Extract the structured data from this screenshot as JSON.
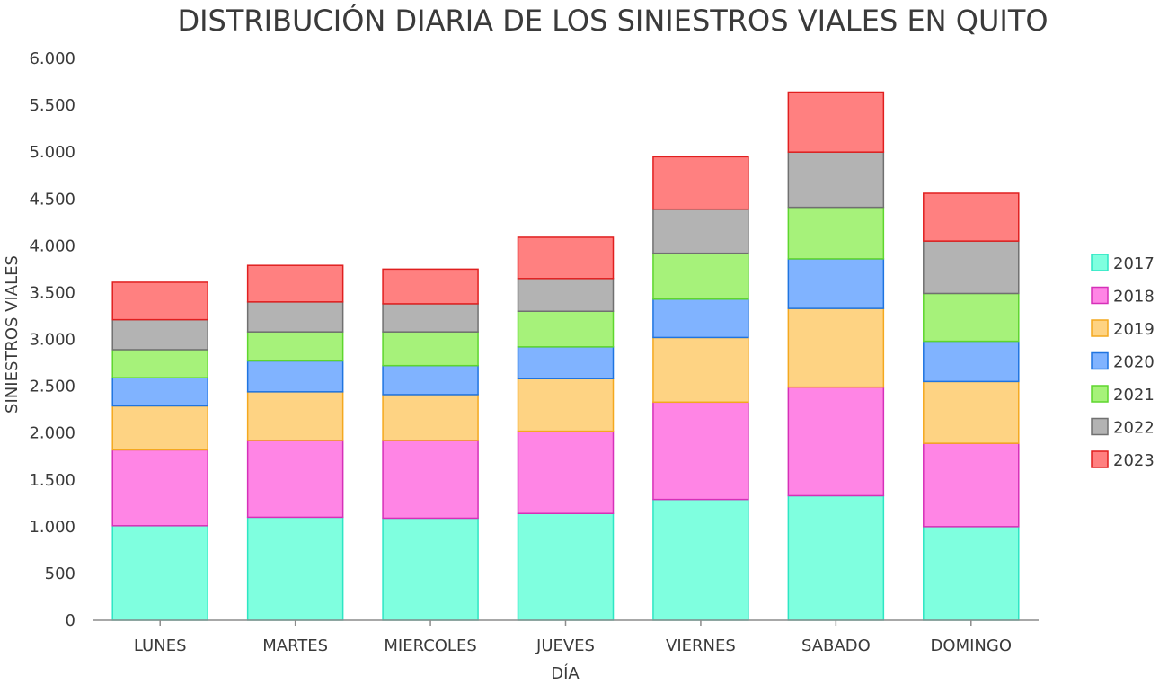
{
  "chart_data": {
    "type": "bar",
    "stacked": true,
    "title": "DISTRIBUCIÓN DIARIA DE LOS SINIESTROS VIALES EN QUITO",
    "xlabel": "DÍA",
    "ylabel": "SINIESTROS VIALES",
    "ylim": [
      0,
      6000
    ],
    "yticks": [
      0,
      500,
      1000,
      1500,
      2000,
      2500,
      3000,
      3500,
      4000,
      4500,
      5000,
      5500,
      6000
    ],
    "ytick_labels": [
      "0",
      "500",
      "1.000",
      "1.500",
      "2.000",
      "2.500",
      "3.000",
      "3.500",
      "4.000",
      "4.500",
      "5.000",
      "5.500",
      "6.000"
    ],
    "categories": [
      "LUNES",
      "MARTES",
      "MIERCOLES",
      "JUEVES",
      "VIERNES",
      "SABADO",
      "DOMINGO"
    ],
    "legend_position": "right",
    "grid": false,
    "series": [
      {
        "name": "2017",
        "values": [
          1010,
          1100,
          1090,
          1140,
          1290,
          1330,
          1000
        ],
        "fill": "#7fffdf",
        "stroke": "#2ee6c4"
      },
      {
        "name": "2018",
        "values": [
          810,
          820,
          830,
          880,
          1040,
          1160,
          890
        ],
        "fill": "#ff85e5",
        "stroke": "#d630b8"
      },
      {
        "name": "2019",
        "values": [
          470,
          520,
          490,
          560,
          690,
          840,
          660
        ],
        "fill": "#fed383",
        "stroke": "#f4a81f"
      },
      {
        "name": "2020",
        "values": [
          300,
          330,
          310,
          340,
          410,
          530,
          430
        ],
        "fill": "#80b3ff",
        "stroke": "#1f74e0"
      },
      {
        "name": "2021",
        "values": [
          300,
          310,
          360,
          380,
          490,
          550,
          510
        ],
        "fill": "#a6f27a",
        "stroke": "#5ed62e"
      },
      {
        "name": "2022",
        "values": [
          320,
          320,
          300,
          350,
          470,
          590,
          560
        ],
        "fill": "#b3b3b3",
        "stroke": "#707070"
      },
      {
        "name": "2023",
        "values": [
          400,
          390,
          370,
          440,
          560,
          640,
          510
        ],
        "fill": "#ff8080",
        "stroke": "#e01f1f"
      }
    ]
  }
}
